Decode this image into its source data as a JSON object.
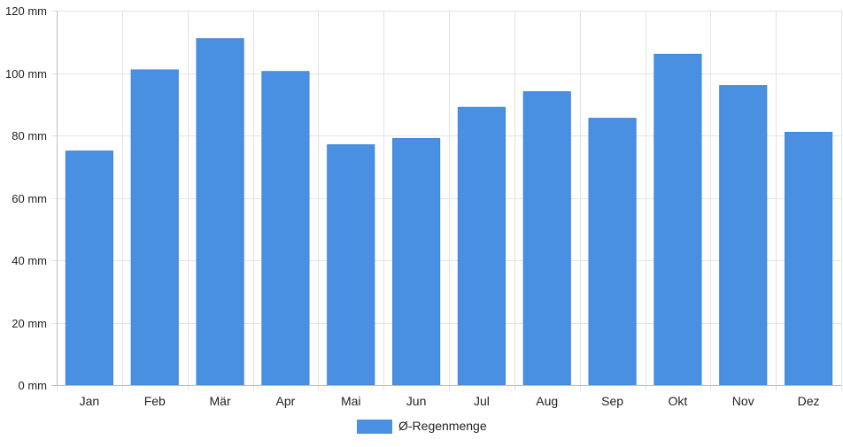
{
  "chart_data": {
    "type": "bar",
    "categories": [
      "Jan",
      "Feb",
      "Mär",
      "Apr",
      "Mai",
      "Jun",
      "Jul",
      "Aug",
      "Sep",
      "Okt",
      "Nov",
      "Dez"
    ],
    "series": [
      {
        "name": "Ø-Regenmenge",
        "values": [
          75,
          101,
          111,
          100.5,
          77,
          79,
          89,
          94,
          85.5,
          106,
          96,
          81
        ]
      }
    ],
    "ylim": [
      0,
      120
    ],
    "yticks": [
      0,
      20,
      40,
      60,
      80,
      100,
      120
    ],
    "y_unit": "mm",
    "grid": true,
    "legend_position": "bottom",
    "colors": {
      "bar": "#4a90e2",
      "grid": "#e3e3e3",
      "axis": "#bdbdbd",
      "text": "#222222"
    }
  },
  "legend": {
    "label": "Ø-Regenmenge"
  }
}
